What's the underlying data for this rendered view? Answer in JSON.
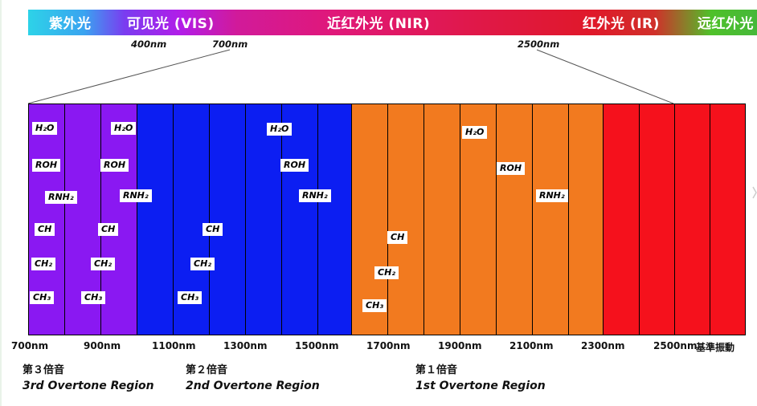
{
  "spectrum_bands": [
    {
      "id": "uv",
      "label": "紫外光"
    },
    {
      "id": "vis",
      "label": "可见光 (VIS)"
    },
    {
      "id": "nir",
      "label": "近红外光 (NIR)"
    },
    {
      "id": "ir",
      "label": "红外光 (IR)"
    },
    {
      "id": "fir",
      "label": "远红外光"
    }
  ],
  "top_wavelengths": [
    "400nm",
    "700nm",
    "2500nm"
  ],
  "columns": {
    "count": 20,
    "colors": {
      "purple": "#8a18f2",
      "blue": "#0c1ef2",
      "orange": "#f27a1f",
      "red": "#f5111c"
    }
  },
  "tags": {
    "h2o_a": "H₂O",
    "roh_a": "ROH",
    "rnh2_a": "RNH₂",
    "ch_a": "CH",
    "ch2_a": "CH₂",
    "ch3_a": "CH₃",
    "h2o_b": "H₂O",
    "roh_b": "ROH",
    "rnh2_b": "RNH₂",
    "ch_b": "CH",
    "ch2_b": "CH₂",
    "ch3_b": "CH₃",
    "ch_c": "CH",
    "ch2_c": "CH₂",
    "ch3_c": "CH₃",
    "h2o_d": "H₂O",
    "roh_d": "ROH",
    "rnh2_d": "RNH₂",
    "ch_e": "CH",
    "ch2_e": "CH₂",
    "ch3_e": "CH₃",
    "h2o_f": "H₂O",
    "roh_f": "ROH",
    "rnh2_f": "RNH₂"
  },
  "axis_labels": [
    "700nm",
    "900nm",
    "1100nm",
    "1300nm",
    "1500nm",
    "1700nm",
    "1900nm",
    "2100nm",
    "2300nm",
    "2500nm",
    "基準振動"
  ],
  "overtones": [
    {
      "cn": "第３倍音",
      "en": "3rd Overtone Region"
    },
    {
      "cn": "第２倍音",
      "en": "2nd Overtone Region"
    },
    {
      "cn": "第１倍音",
      "en": "1st Overtone Region"
    }
  ]
}
